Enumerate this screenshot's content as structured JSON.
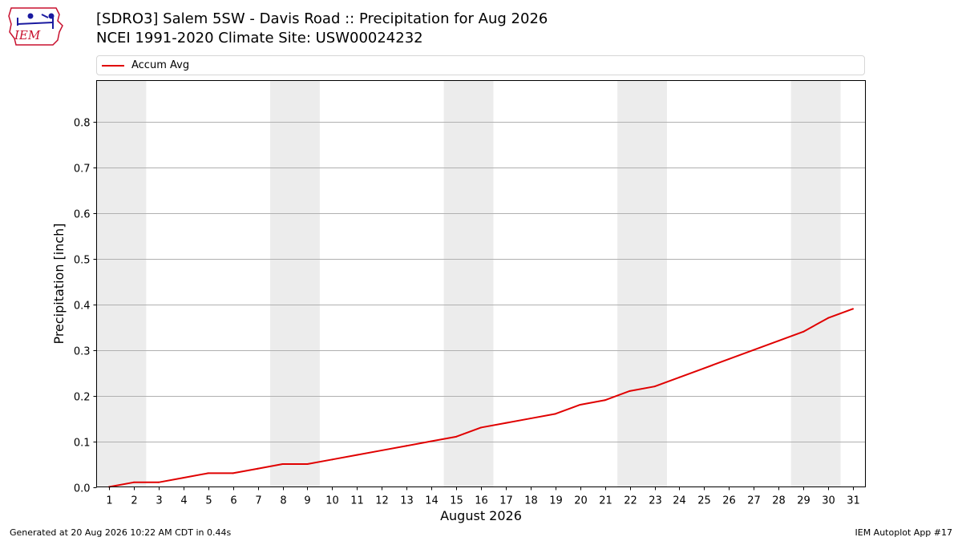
{
  "header": {
    "title_line1": "[SDRO3] Salem 5SW - Davis Road :: Precipitation for Aug 2026",
    "title_line2": "NCEI 1991-2020 Climate Site: USW00024232"
  },
  "logo": {
    "text": "IEM",
    "icon": "iem-iowa-map-logo"
  },
  "footer": {
    "left": "Generated at 20 Aug 2026 10:22 AM CDT in 0.44s",
    "right": "IEM Autoplot App #17"
  },
  "colors": {
    "series": "#e00000",
    "weekend_band": "#ececec",
    "grid": "#b0b0b0",
    "logo_blue": "#1a1aa0",
    "logo_red": "#c8102e"
  },
  "chart_data": {
    "type": "line",
    "xlabel": "August 2026",
    "ylabel": "Precipitation [inch]",
    "x": [
      1,
      2,
      3,
      4,
      5,
      6,
      7,
      8,
      9,
      10,
      11,
      12,
      13,
      14,
      15,
      16,
      17,
      18,
      19,
      20,
      21,
      22,
      23,
      24,
      25,
      26,
      27,
      28,
      29,
      30,
      31
    ],
    "xlim": [
      0.5,
      31.5
    ],
    "ylim": [
      0,
      0.89
    ],
    "yticks": [
      0.0,
      0.1,
      0.2,
      0.3,
      0.4,
      0.5,
      0.6,
      0.7,
      0.8
    ],
    "ytick_labels": [
      "0.0",
      "0.1",
      "0.2",
      "0.3",
      "0.4",
      "0.5",
      "0.6",
      "0.7",
      "0.8"
    ],
    "grid": "horizontal",
    "legend_placement": "top",
    "shaded_day_ranges": [
      [
        1,
        2
      ],
      [
        8,
        9
      ],
      [
        15,
        16
      ],
      [
        22,
        23
      ],
      [
        29,
        30
      ]
    ],
    "series": [
      {
        "name": "Accum Avg",
        "values": [
          0.0,
          0.01,
          0.01,
          0.02,
          0.03,
          0.03,
          0.04,
          0.05,
          0.05,
          0.06,
          0.07,
          0.08,
          0.09,
          0.1,
          0.11,
          0.13,
          0.14,
          0.15,
          0.16,
          0.18,
          0.19,
          0.21,
          0.22,
          0.24,
          0.26,
          0.28,
          0.3,
          0.32,
          0.34,
          0.37,
          0.39
        ]
      }
    ]
  }
}
